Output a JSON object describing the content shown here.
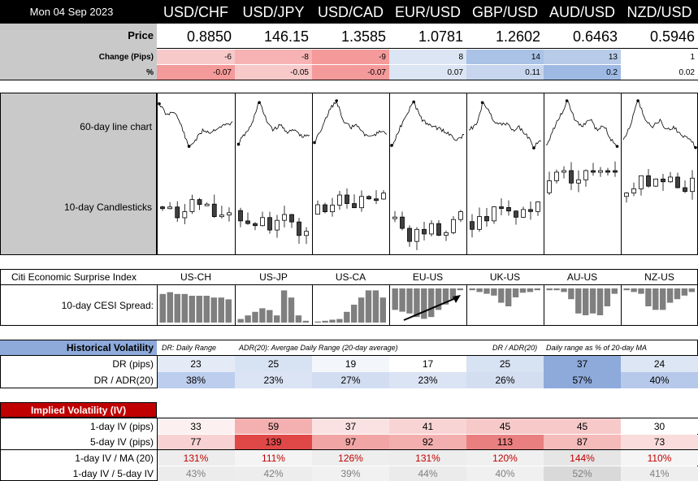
{
  "header": {
    "date": "Mon 04 Sep 2023",
    "pairs": [
      "USD/CHF",
      "USD/JPY",
      "USD/CAD",
      "EUR/USD",
      "GBP/USD",
      "AUD/USD",
      "NZD/USD"
    ]
  },
  "prices": {
    "label": "Price",
    "values": [
      "0.8850",
      "146.15",
      "1.3585",
      "1.0781",
      "1.2602",
      "0.6463",
      "0.5946"
    ]
  },
  "change": {
    "label": "Change (Pips)",
    "values": [
      "-6",
      "-8",
      "-9",
      "8",
      "14",
      "13",
      "1"
    ],
    "colors": [
      "#f8c9c9",
      "#f7b3b3",
      "#f59a9a",
      "#dbe5f3",
      "#a9c2e6",
      "#b8cce9",
      "#ffffff"
    ]
  },
  "pct": {
    "label": "%",
    "values": [
      "-0.07",
      "-0.05",
      "-0.07",
      "0.07",
      "0.11",
      "0.2",
      "0.02"
    ],
    "colors": [
      "#f59a9a",
      "#f8c9c9",
      "#f59a9a",
      "#dbe5f3",
      "#c7d6ee",
      "#9eb9e3",
      "#ffffff"
    ]
  },
  "charts": {
    "line_label": "60-day line chart",
    "candle_label": "10-day Candlesticks"
  },
  "cesi": {
    "title": "Citi Economic Surprise Index",
    "row_label": "10-day CESI Spread:",
    "regions": [
      "US-CH",
      "US-JP",
      "US-CA",
      "EU-US",
      "UK-US",
      "AU-US",
      "NZ-US"
    ],
    "bars": [
      [
        8,
        8.5,
        8,
        8,
        7.5,
        7.5,
        7.5,
        7,
        7,
        6.5
      ],
      [
        1,
        2,
        3,
        4,
        3.5,
        2,
        9,
        7,
        2,
        0.5
      ],
      [
        0.3,
        0.5,
        0.8,
        1,
        3,
        5,
        7,
        9,
        9,
        7
      ],
      [
        -6,
        -6.5,
        -7,
        -8,
        -8.5,
        -8,
        -6,
        -4.5,
        -3,
        -0.5
      ],
      [
        -0.5,
        -1,
        -1.5,
        -2,
        -4,
        -5,
        -2.5,
        -1.2,
        -1,
        -0.5
      ],
      [
        -0.5,
        -0.5,
        -1,
        -3,
        -7,
        -7.5,
        -7,
        -7.5,
        -5,
        -1.5
      ],
      [
        -0.5,
        -1,
        -1.5,
        -5,
        -6,
        -6,
        -4,
        -3,
        -2,
        -1
      ]
    ]
  },
  "hist_vol": {
    "title": "Historical Volatility",
    "notes": [
      "DR: Daily Range",
      "ADR(20): Avergae Daily Range (20-day average)",
      "DR / ADR(20)",
      "Daily range as % of 20-day MA"
    ],
    "dr_label": "DR (pips)",
    "dr_values": [
      "23",
      "25",
      "19",
      "17",
      "25",
      "37",
      "24"
    ],
    "dr_colors": [
      "#e4ebf6",
      "#d7e2f3",
      "#f3f6fb",
      "#ffffff",
      "#d7e2f3",
      "#8eaadb",
      "#dde6f4"
    ],
    "ratio_label": "DR / ADR(20)",
    "ratio_values": [
      "38%",
      "23%",
      "27%",
      "23%",
      "26%",
      "57%",
      "40%"
    ],
    "ratio_colors": [
      "#bccded",
      "#dbe4f4",
      "#d2ddf1",
      "#dbe4f4",
      "#d4def1",
      "#8eaadb",
      "#b7c9ea"
    ]
  },
  "impl_vol": {
    "title": "Implied Volatility (IV)",
    "rows": [
      {
        "label": "1-day IV (pips)",
        "values": [
          "33",
          "59",
          "37",
          "41",
          "45",
          "45",
          "30"
        ],
        "colors": [
          "#fdf0f0",
          "#f4b0b0",
          "#fbe2e2",
          "#f9d4d4",
          "#f7c9c9",
          "#f7c9c9",
          "#ffffff"
        ],
        "text": "#000000"
      },
      {
        "label": "5-day IV (pips)",
        "values": [
          "77",
          "139",
          "97",
          "92",
          "113",
          "87",
          "73"
        ],
        "colors": [
          "#f8d2d2",
          "#e04848",
          "#f2a5a5",
          "#f3aeae",
          "#ea7f7f",
          "#f5baba",
          "#fadcdc"
        ],
        "text": "#000000"
      },
      {
        "label": "1-day IV / MA (20)",
        "values": [
          "131%",
          "111%",
          "126%",
          "131%",
          "120%",
          "144%",
          "110%"
        ],
        "colors": [
          "#ededed",
          "#f4f4f4",
          "#eeeeee",
          "#ededed",
          "#f0f0f0",
          "#e6e6e6",
          "#f5f5f5"
        ],
        "text": "#c00000"
      },
      {
        "label": "1-day IV / 5-day IV",
        "values": [
          "43%",
          "42%",
          "39%",
          "44%",
          "40%",
          "52%",
          "41%"
        ],
        "colors": [
          "#ececec",
          "#ededed",
          "#f1f1f1",
          "#ebebeb",
          "#f0f0f0",
          "#d9d9d9",
          "#eeeeee"
        ],
        "text": "#7f7f7f"
      }
    ]
  },
  "colors": {
    "hv_title_bg": "#8eaadb",
    "iv_title_bg": "#c00000",
    "bar_color": "#7f7f7f"
  }
}
